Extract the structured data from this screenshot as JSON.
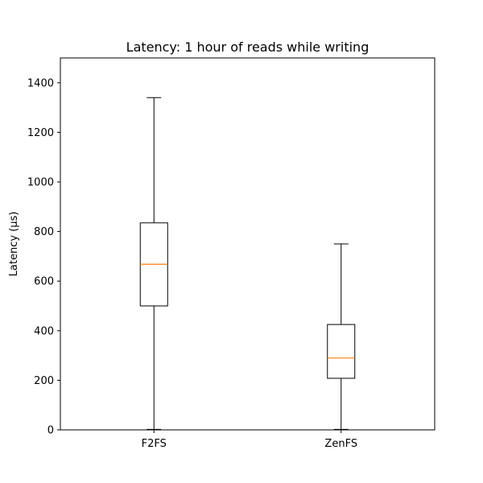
{
  "chart_data": {
    "type": "box",
    "title": "Latency: 1 hour of reads while writing",
    "xlabel": "",
    "ylabel": "Latency (µs)",
    "ylim": [
      0,
      1500
    ],
    "yticks": [
      0,
      200,
      400,
      600,
      800,
      1000,
      1200,
      1400
    ],
    "grid": false,
    "categories": [
      "F2FS",
      "ZenFS"
    ],
    "boxes": [
      {
        "category": "F2FS",
        "whisker_low": 2,
        "q1": 500,
        "median": 668,
        "q3": 835,
        "whisker_high": 1340
      },
      {
        "category": "ZenFS",
        "whisker_low": 2,
        "q1": 208,
        "median": 290,
        "q3": 425,
        "whisker_high": 750
      }
    ],
    "colors": {
      "box": "#000000",
      "median": "#ff7f0e",
      "axes": "#000000"
    }
  }
}
